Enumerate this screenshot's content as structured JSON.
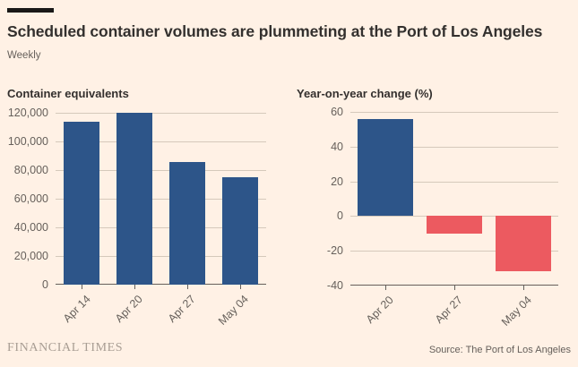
{
  "header": {
    "title": "Scheduled container volumes are plummeting at the Port of Los Angeles",
    "subtitle": "Weekly"
  },
  "footer": {
    "brand": "FINANCIAL TIMES",
    "source": "Source: The Port of Los Angeles"
  },
  "colors": {
    "background": "#FFF1E5",
    "accent_bar": "#1A1817",
    "blue_bar": "#2D5589",
    "red_bar": "#EC5A60",
    "gridline": "#D5C9BB",
    "axis": "#66605B",
    "text_dark": "#33302E",
    "text_muted": "#66605B",
    "brand_text": "#A89D93"
  },
  "chart_data": [
    {
      "type": "bar",
      "title": "Container equivalents",
      "categories": [
        "Apr 14",
        "Apr 20",
        "Apr 27",
        "May 04"
      ],
      "values": [
        113500,
        120000,
        85500,
        75000
      ],
      "ylim": [
        0,
        120000
      ],
      "yticks": [
        120000,
        100000,
        80000,
        60000,
        40000,
        20000,
        0
      ],
      "ytick_labels": [
        "120,000",
        "100,000",
        "80,000",
        "60,000",
        "40,000",
        "20,000",
        "0"
      ],
      "bar_color": "#2D5589",
      "grid": true,
      "legend": "none",
      "xlabel": "",
      "ylabel": "Container equivalents"
    },
    {
      "type": "bar",
      "title": "Year-on-year change (%)",
      "categories": [
        "Apr 20",
        "Apr 27",
        "May 04"
      ],
      "values": [
        56,
        -10,
        -32
      ],
      "ylim": [
        -40,
        60
      ],
      "yticks": [
        60,
        40,
        20,
        0,
        -20,
        -40
      ],
      "ytick_labels": [
        "60",
        "40",
        "20",
        "0",
        "-20",
        "-40"
      ],
      "positive_color": "#2D5589",
      "negative_color": "#EC5A60",
      "grid": true,
      "legend": "none",
      "xlabel": "",
      "ylabel": "Year-on-year change (%)"
    }
  ]
}
